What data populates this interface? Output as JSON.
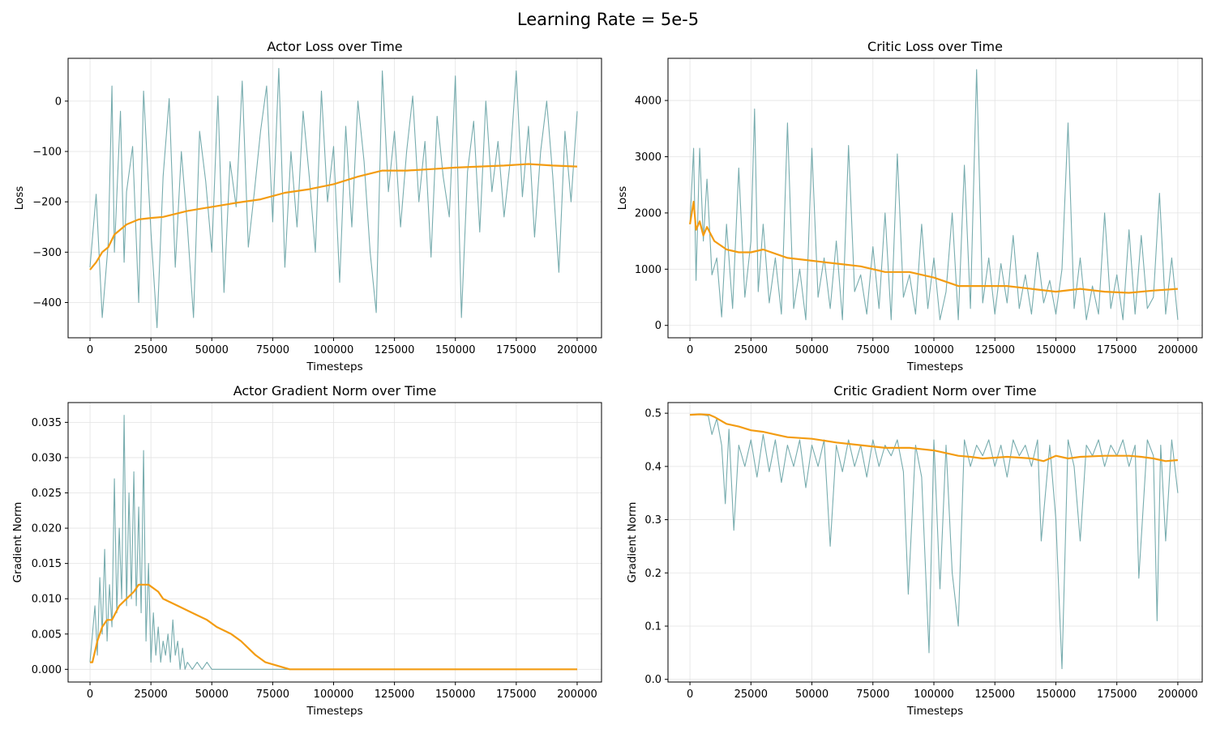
{
  "figure": {
    "suptitle": "Learning Rate = 5e-5"
  },
  "colors": {
    "raw": "#5f9ea0",
    "smoothed": "#f39c12",
    "grid": "#e3e3e3"
  },
  "chart_data": [
    {
      "type": "line",
      "title": "Actor Loss over Time",
      "xlabel": "Timesteps",
      "ylabel": "Loss",
      "xlim": [
        -9000,
        210000
      ],
      "ylim": [
        -470,
        85
      ],
      "xticks": [
        0,
        25000,
        50000,
        75000,
        100000,
        125000,
        150000,
        175000,
        200000
      ],
      "yticks": [
        -400,
        -300,
        -200,
        -100,
        0
      ],
      "ytick_labels": [
        "−400",
        "−300",
        "−200",
        "−100",
        "0"
      ],
      "grid": true,
      "series": [
        {
          "role": "raw",
          "x": [
            0,
            2500,
            5000,
            7500,
            9000,
            10000,
            12500,
            14000,
            15000,
            17500,
            20000,
            22000,
            25000,
            27500,
            30000,
            32500,
            35000,
            37500,
            40000,
            42500,
            45000,
            47500,
            50000,
            52500,
            55000,
            57500,
            60000,
            62500,
            65000,
            67500,
            70000,
            72500,
            75000,
            77500,
            80000,
            82500,
            85000,
            87500,
            90000,
            92500,
            95000,
            97500,
            100000,
            102500,
            105000,
            107500,
            110000,
            112500,
            115000,
            117500,
            120000,
            122500,
            125000,
            127500,
            130000,
            132500,
            135000,
            137500,
            140000,
            142500,
            145000,
            147500,
            150000,
            152500,
            155000,
            157500,
            160000,
            162500,
            165000,
            167500,
            170000,
            172500,
            175000,
            177500,
            180000,
            182500,
            185000,
            187500,
            190000,
            192500,
            195000,
            197500,
            200000
          ],
          "y": [
            -330,
            -185,
            -430,
            -280,
            30,
            -300,
            -20,
            -320,
            -180,
            -90,
            -400,
            20,
            -260,
            -450,
            -150,
            5,
            -330,
            -100,
            -250,
            -430,
            -60,
            -160,
            -300,
            10,
            -380,
            -120,
            -210,
            40,
            -290,
            -180,
            -60,
            30,
            -240,
            65,
            -330,
            -100,
            -250,
            -20,
            -150,
            -300,
            20,
            -200,
            -90,
            -360,
            -50,
            -250,
            0,
            -120,
            -300,
            -420,
            60,
            -180,
            -60,
            -250,
            -100,
            10,
            -200,
            -80,
            -310,
            -30,
            -150,
            -230,
            50,
            -430,
            -140,
            -40,
            -260,
            0,
            -180,
            -80,
            -230,
            -120,
            60,
            -190,
            -50,
            -270,
            -100,
            0,
            -150,
            -340,
            -60,
            -200,
            -20
          ]
        },
        {
          "role": "smoothed",
          "x": [
            0,
            2500,
            5000,
            7500,
            10000,
            15000,
            20000,
            25000,
            30000,
            40000,
            50000,
            60000,
            70000,
            80000,
            90000,
            100000,
            110000,
            120000,
            130000,
            140000,
            150000,
            160000,
            170000,
            180000,
            190000,
            200000
          ],
          "y": [
            -335,
            -320,
            -300,
            -290,
            -265,
            -245,
            -235,
            -232,
            -230,
            -218,
            -210,
            -202,
            -195,
            -182,
            -175,
            -165,
            -150,
            -138,
            -138,
            -135,
            -132,
            -130,
            -128,
            -125,
            -128,
            -130
          ]
        }
      ]
    },
    {
      "type": "line",
      "title": "Critic Loss over Time",
      "xlabel": "Timesteps",
      "ylabel": "Loss",
      "xlim": [
        -9000,
        210000
      ],
      "ylim": [
        -220,
        4750
      ],
      "xticks": [
        0,
        25000,
        50000,
        75000,
        100000,
        125000,
        150000,
        175000,
        200000
      ],
      "yticks": [
        0,
        1000,
        2000,
        3000,
        4000
      ],
      "grid": true,
      "series": [
        {
          "role": "raw",
          "x": [
            0,
            1500,
            2500,
            4000,
            5500,
            7000,
            9000,
            11000,
            13000,
            15000,
            17500,
            20000,
            22500,
            25000,
            26500,
            28000,
            30000,
            32500,
            35000,
            37500,
            40000,
            42500,
            45000,
            47500,
            50000,
            52500,
            55000,
            57500,
            60000,
            62500,
            65000,
            67500,
            70000,
            72500,
            75000,
            77500,
            80000,
            82500,
            85000,
            87500,
            90000,
            92500,
            95000,
            97500,
            100000,
            102500,
            105000,
            107500,
            110000,
            112500,
            115000,
            117500,
            120000,
            122500,
            125000,
            127500,
            130000,
            132500,
            135000,
            137500,
            140000,
            142500,
            145000,
            147500,
            150000,
            152500,
            155000,
            157500,
            160000,
            162500,
            165000,
            167500,
            170000,
            172500,
            175000,
            177500,
            180000,
            182500,
            185000,
            187500,
            190000,
            192500,
            195000,
            197500,
            200000
          ],
          "y": [
            1800,
            3150,
            800,
            3150,
            1500,
            2600,
            900,
            1200,
            150,
            1800,
            300,
            2800,
            500,
            1500,
            3850,
            600,
            1800,
            400,
            1200,
            200,
            3600,
            300,
            1000,
            100,
            3150,
            500,
            1200,
            300,
            1500,
            100,
            3200,
            600,
            900,
            200,
            1400,
            300,
            2000,
            100,
            3050,
            500,
            900,
            200,
            1800,
            300,
            1200,
            100,
            600,
            2000,
            100,
            2850,
            300,
            4550,
            400,
            1200,
            200,
            1100,
            400,
            1600,
            300,
            900,
            200,
            1300,
            400,
            800,
            200,
            1000,
            3600,
            300,
            1200,
            100,
            700,
            200,
            2000,
            300,
            900,
            100,
            1700,
            200,
            1600,
            300,
            500,
            2350,
            200,
            1200,
            100
          ]
        },
        {
          "role": "smoothed",
          "x": [
            0,
            1500,
            2500,
            4000,
            5500,
            7000,
            10000,
            15000,
            20000,
            25000,
            30000,
            40000,
            50000,
            60000,
            70000,
            80000,
            90000,
            100000,
            110000,
            120000,
            130000,
            140000,
            150000,
            160000,
            170000,
            180000,
            190000,
            200000
          ],
          "y": [
            1800,
            2200,
            1700,
            1850,
            1600,
            1750,
            1500,
            1350,
            1300,
            1300,
            1350,
            1200,
            1150,
            1100,
            1050,
            950,
            950,
            850,
            700,
            700,
            700,
            650,
            600,
            650,
            600,
            580,
            620,
            650
          ]
        }
      ]
    },
    {
      "type": "line",
      "title": "Actor Gradient Norm over Time",
      "xlabel": "Timesteps",
      "ylabel": "Gradient Norm",
      "xlim": [
        -9000,
        210000
      ],
      "ylim": [
        -0.0018,
        0.0378
      ],
      "xticks": [
        0,
        25000,
        50000,
        75000,
        100000,
        125000,
        150000,
        175000,
        200000
      ],
      "yticks": [
        0,
        0.005,
        0.01,
        0.015,
        0.02,
        0.025,
        0.03,
        0.035
      ],
      "ytick_labels": [
        "0.000",
        "0.005",
        "0.010",
        "0.015",
        "0.020",
        "0.025",
        "0.030",
        "0.035"
      ],
      "grid": true,
      "series": [
        {
          "role": "raw",
          "x": [
            0,
            2000,
            3000,
            4000,
            5000,
            6000,
            7000,
            8000,
            9000,
            10000,
            11000,
            12000,
            13000,
            14000,
            15000,
            16000,
            17000,
            18000,
            19000,
            20000,
            21000,
            22000,
            23000,
            24000,
            25000,
            26000,
            27000,
            28000,
            29000,
            30000,
            31000,
            32000,
            33000,
            34000,
            35000,
            36000,
            37000,
            38000,
            39000,
            40000,
            42000,
            44000,
            46000,
            48000,
            50000,
            52000,
            55000,
            60000,
            80000,
            100000,
            200000
          ],
          "y": [
            0.001,
            0.009,
            0.002,
            0.013,
            0.005,
            0.017,
            0.004,
            0.012,
            0.006,
            0.027,
            0.008,
            0.02,
            0.01,
            0.036,
            0.009,
            0.025,
            0.01,
            0.028,
            0.009,
            0.023,
            0.008,
            0.031,
            0.004,
            0.015,
            0.001,
            0.008,
            0.002,
            0.006,
            0.001,
            0.004,
            0.002,
            0.005,
            0.001,
            0.007,
            0.002,
            0.004,
            0.0,
            0.003,
            0.0,
            0.001,
            0.0,
            0.001,
            0.0,
            0.001,
            0.0,
            0.0,
            0.0,
            0.0,
            0.0,
            0.0,
            0.0
          ]
        },
        {
          "role": "smoothed",
          "x": [
            0,
            1000,
            3000,
            5000,
            7000,
            9000,
            12000,
            15000,
            18000,
            20000,
            24000,
            28000,
            30000,
            36000,
            42000,
            48000,
            52000,
            58000,
            62000,
            65000,
            68000,
            72000,
            82000,
            200000
          ],
          "y": [
            0.001,
            0.001,
            0.004,
            0.006,
            0.007,
            0.007,
            0.009,
            0.01,
            0.011,
            0.012,
            0.012,
            0.011,
            0.01,
            0.009,
            0.008,
            0.007,
            0.006,
            0.005,
            0.004,
            0.003,
            0.002,
            0.001,
            0.0,
            0.0
          ]
        }
      ]
    },
    {
      "type": "line",
      "title": "Critic Gradient Norm over Time",
      "xlabel": "Timesteps",
      "ylabel": "Gradient Norm",
      "xlim": [
        -9000,
        210000
      ],
      "ylim": [
        -0.005,
        0.52
      ],
      "xticks": [
        0,
        25000,
        50000,
        75000,
        100000,
        125000,
        150000,
        175000,
        200000
      ],
      "yticks": [
        0,
        0.1,
        0.2,
        0.3,
        0.4,
        0.5
      ],
      "ytick_labels": [
        "0.0",
        "0.1",
        "0.2",
        "0.3",
        "0.4",
        "0.5"
      ],
      "grid": true,
      "series": [
        {
          "role": "raw",
          "x": [
            0,
            2500,
            5000,
            7500,
            9000,
            11000,
            13000,
            14500,
            16000,
            18000,
            20000,
            22500,
            25000,
            27500,
            30000,
            32500,
            35000,
            37500,
            40000,
            42500,
            45000,
            47500,
            50000,
            52500,
            55000,
            57500,
            60000,
            62500,
            65000,
            67500,
            70000,
            72500,
            75000,
            77500,
            80000,
            82500,
            85000,
            87500,
            89500,
            92500,
            95000,
            98000,
            100000,
            102500,
            105000,
            107500,
            110000,
            112500,
            115000,
            117500,
            120000,
            122500,
            125000,
            127500,
            130000,
            132500,
            135000,
            137500,
            140000,
            142500,
            144000,
            147500,
            150000,
            152500,
            155000,
            157500,
            160000,
            162500,
            165000,
            167500,
            170000,
            172500,
            175000,
            177500,
            180000,
            182500,
            184000,
            187500,
            190000,
            191500,
            193000,
            195000,
            197500,
            200000
          ],
          "y": [
            0.497,
            0.498,
            0.497,
            0.495,
            0.46,
            0.49,
            0.44,
            0.33,
            0.47,
            0.28,
            0.44,
            0.4,
            0.45,
            0.38,
            0.46,
            0.39,
            0.45,
            0.37,
            0.44,
            0.4,
            0.45,
            0.36,
            0.44,
            0.4,
            0.45,
            0.25,
            0.44,
            0.39,
            0.45,
            0.4,
            0.44,
            0.38,
            0.45,
            0.4,
            0.44,
            0.42,
            0.45,
            0.39,
            0.16,
            0.44,
            0.38,
            0.05,
            0.45,
            0.17,
            0.44,
            0.2,
            0.1,
            0.45,
            0.4,
            0.44,
            0.42,
            0.45,
            0.4,
            0.44,
            0.38,
            0.45,
            0.42,
            0.44,
            0.4,
            0.45,
            0.26,
            0.44,
            0.3,
            0.02,
            0.45,
            0.4,
            0.26,
            0.44,
            0.42,
            0.45,
            0.4,
            0.44,
            0.42,
            0.45,
            0.4,
            0.44,
            0.19,
            0.45,
            0.42,
            0.11,
            0.44,
            0.26,
            0.45,
            0.35
          ]
        },
        {
          "role": "smoothed",
          "x": [
            0,
            4000,
            8000,
            10000,
            15000,
            20000,
            25000,
            30000,
            35000,
            40000,
            50000,
            60000,
            70000,
            80000,
            90000,
            100000,
            110000,
            115000,
            120000,
            130000,
            140000,
            145000,
            150000,
            155000,
            160000,
            170000,
            180000,
            185000,
            190000,
            195000,
            200000
          ],
          "y": [
            0.497,
            0.498,
            0.497,
            0.493,
            0.48,
            0.475,
            0.468,
            0.465,
            0.46,
            0.455,
            0.452,
            0.445,
            0.44,
            0.435,
            0.435,
            0.43,
            0.42,
            0.418,
            0.415,
            0.418,
            0.415,
            0.41,
            0.42,
            0.415,
            0.418,
            0.42,
            0.42,
            0.418,
            0.415,
            0.41,
            0.412
          ]
        }
      ]
    }
  ]
}
